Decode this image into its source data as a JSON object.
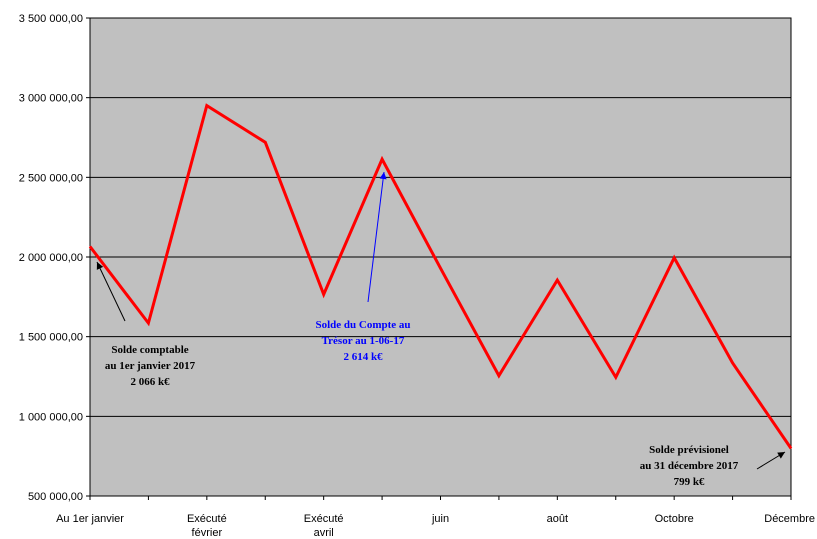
{
  "chart_data": {
    "type": "line",
    "title": "",
    "xlabel": "",
    "ylabel": "",
    "ylim": [
      500000,
      3500000
    ],
    "grid": "horizontal",
    "y_ticks": [
      "500 000,00",
      "1 000 000,00",
      "1 500 000,00",
      "2 000 000,00",
      "2 500 000,00",
      "3 000 000,00",
      "3 500 000,00"
    ],
    "x_labels": [
      [
        "Au 1er janvier"
      ],
      [
        ""
      ],
      [
        "Exécuté",
        "février"
      ],
      [
        ""
      ],
      [
        "Exécuté",
        "avril"
      ],
      [
        ""
      ],
      [
        "juin"
      ],
      [
        ""
      ],
      [
        "août"
      ],
      [
        ""
      ],
      [
        "Octobre"
      ],
      [
        ""
      ],
      [
        "Décembre"
      ]
    ],
    "series": [
      {
        "color": "#ff0000",
        "values": [
          2066000,
          1585000,
          2950000,
          2720000,
          1765000,
          2614000,
          1930000,
          1255000,
          1855000,
          1245000,
          1995000,
          1335000,
          799000
        ]
      }
    ],
    "annotations": [
      {
        "lines": [
          "Solde comptable",
          "au 1er janvier 2017",
          "2 066 k€"
        ],
        "color": "#000000"
      },
      {
        "lines": [
          "Solde du Compte au",
          "Trésor au 1-06-17",
          "2 614 k€"
        ],
        "color": "#0000ff"
      },
      {
        "lines": [
          "Solde prévisionel",
          "au 31 décembre 2017",
          "799 k€"
        ],
        "color": "#000000"
      }
    ]
  }
}
